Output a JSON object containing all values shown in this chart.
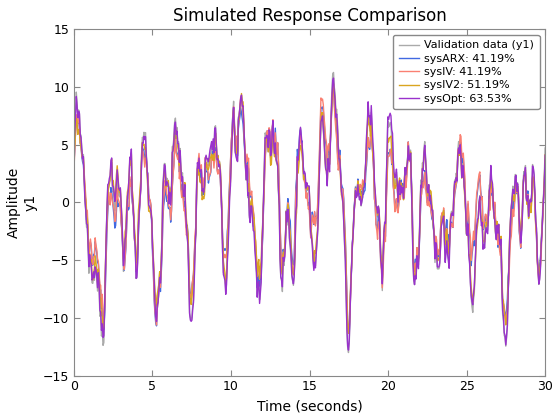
{
  "title": "Simulated Response Comparison",
  "xlabel": "Time (seconds)",
  "ylabel": "Amplitude\ny1",
  "xlim": [
    0,
    30
  ],
  "ylim": [
    -15,
    15
  ],
  "xticks": [
    0,
    5,
    10,
    15,
    20,
    25,
    30
  ],
  "yticks": [
    -15,
    -10,
    -5,
    0,
    5,
    10,
    15
  ],
  "legend_labels": [
    "Validation data (y1)",
    "sysARX: 41.19%",
    "sysIV: 41.19%",
    "sysIV2: 51.19%",
    "sysOpt: 63.53%"
  ],
  "line_colors": [
    "#aaaaaa",
    "#4169e1",
    "#fa8072",
    "#daa520",
    "#9932cc"
  ],
  "line_widths": [
    1.0,
    1.0,
    1.0,
    1.0,
    1.0
  ],
  "n_points": 600,
  "background_color": "#ffffff",
  "grid": false
}
